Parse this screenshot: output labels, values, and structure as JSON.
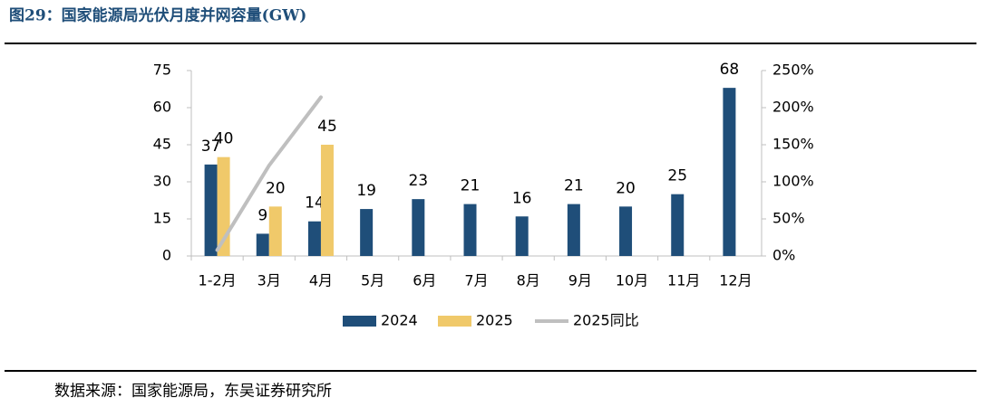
{
  "chart_data": {
    "type": "bar",
    "title": "图29：国家能源局光伏月度并网容量(GW)",
    "source": "数据来源：国家能源局，东吴证券研究所",
    "categories": [
      "1-2月",
      "3月",
      "4月",
      "5月",
      "6月",
      "7月",
      "8月",
      "9月",
      "10月",
      "11月",
      "12月"
    ],
    "series": [
      {
        "name": "2024",
        "color": "#1f4e79",
        "type": "bar",
        "values": [
          37,
          9,
          14,
          19,
          23,
          21,
          16,
          21,
          20,
          25,
          68
        ]
      },
      {
        "name": "2025",
        "color": "#f0c96a",
        "type": "bar",
        "values": [
          40,
          20,
          45,
          null,
          null,
          null,
          null,
          null,
          null,
          null,
          null
        ]
      },
      {
        "name": "2025同比",
        "color": "#bfbfbf",
        "type": "line",
        "axis": "y2",
        "values": [
          8,
          122,
          214,
          null,
          null,
          null,
          null,
          null,
          null,
          null,
          null
        ]
      }
    ],
    "ylim": [
      0,
      75
    ],
    "yticks": [
      0,
      15,
      30,
      45,
      60,
      75
    ],
    "y2lim": [
      0,
      250
    ],
    "y2ticks": [
      {
        "value": 0,
        "label": "0%"
      },
      {
        "value": 50,
        "label": "50%"
      },
      {
        "value": 100,
        "label": "100%"
      },
      {
        "value": 150,
        "label": "150%"
      },
      {
        "value": 200,
        "label": "200%"
      },
      {
        "value": 250,
        "label": "250%"
      }
    ],
    "legend": "bottom"
  }
}
